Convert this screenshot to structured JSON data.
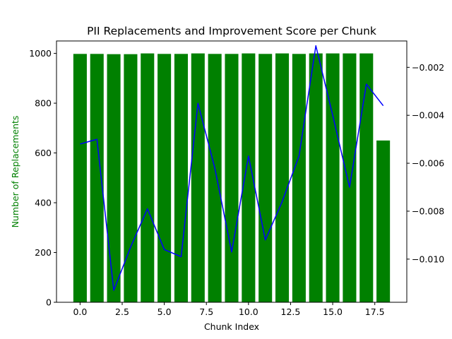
{
  "chart_data": {
    "type": "bar+line",
    "title": "PII Replacements and Improvement Score per Chunk",
    "xlabel": "Chunk Index",
    "ylabel": "Number of Replacements",
    "ylabel_color": "#008000",
    "y2label": "",
    "xlim": [
      -1.4,
      19.4
    ],
    "ylim": [
      0,
      1050
    ],
    "y2lim": [
      -0.0118,
      -0.0009
    ],
    "x_ticks": [
      0.0,
      2.5,
      5.0,
      7.5,
      10.0,
      12.5,
      15.0,
      17.5
    ],
    "x_tick_labels": [
      "0.0",
      "2.5",
      "5.0",
      "7.5",
      "10.0",
      "12.5",
      "15.0",
      "17.5"
    ],
    "y_ticks": [
      0,
      200,
      400,
      600,
      800,
      1000
    ],
    "y_tick_labels": [
      "0",
      "200",
      "400",
      "600",
      "800",
      "1000"
    ],
    "y2_ticks": [
      -0.01,
      -0.008,
      -0.006,
      -0.004,
      -0.002
    ],
    "y2_tick_labels": [
      "−0.010",
      "−0.008",
      "−0.006",
      "−0.004",
      "−0.002"
    ],
    "grid": false,
    "series": [
      {
        "type": "bar",
        "axis": "left",
        "color": "#008000",
        "x": [
          0,
          1,
          2,
          3,
          4,
          5,
          6,
          7,
          8,
          9,
          10,
          11,
          12,
          13,
          14,
          15,
          16,
          17,
          18
        ],
        "values": [
          998,
          998,
          997,
          997,
          1000,
          998,
          998,
          1000,
          998,
          998,
          1000,
          998,
          1000,
          998,
          1000,
          1000,
          1000,
          1000,
          650
        ]
      },
      {
        "type": "line",
        "axis": "right",
        "color": "#0000ff",
        "x": [
          0,
          1,
          2,
          3,
          4,
          5,
          6,
          7,
          8,
          9,
          10,
          11,
          12,
          13,
          14,
          15,
          16,
          17,
          18
        ],
        "values": [
          -0.0052,
          -0.005,
          -0.0113,
          -0.0095,
          -0.0079,
          -0.0096,
          -0.0099,
          -0.0035,
          -0.0062,
          -0.0097,
          -0.0057,
          -0.0092,
          -0.0076,
          -0.0057,
          -0.0011,
          -0.004,
          -0.007,
          -0.0027,
          -0.0036
        ]
      }
    ]
  }
}
